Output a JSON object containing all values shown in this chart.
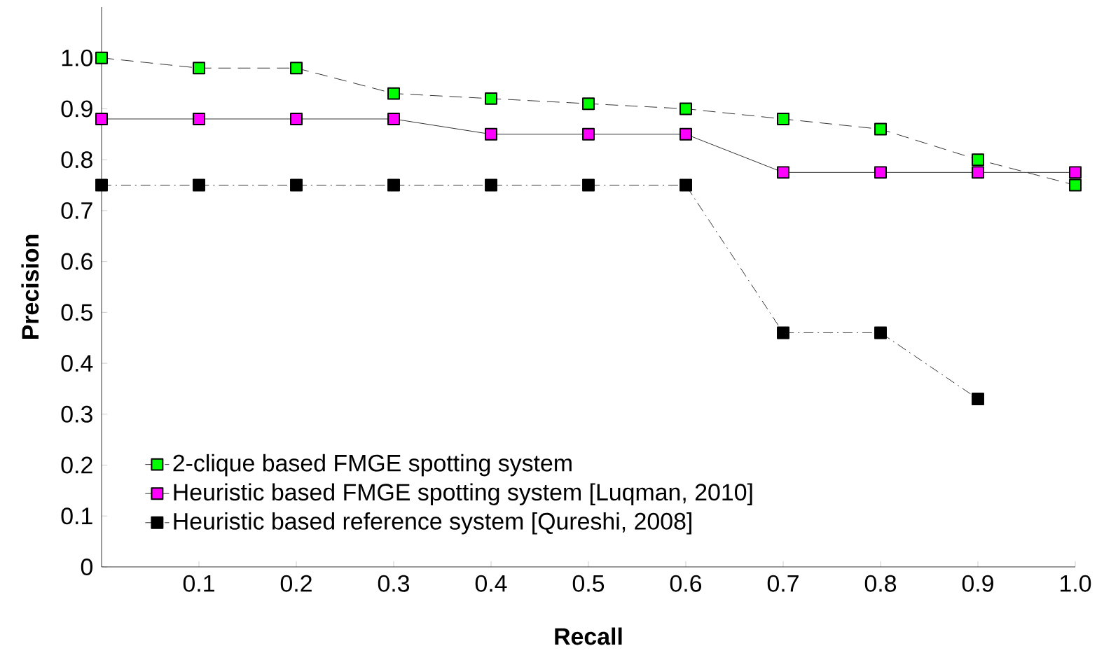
{
  "chart_data": {
    "type": "line",
    "xlabel": "Recall",
    "ylabel": "Precision",
    "x": [
      0,
      0.1,
      0.2,
      0.3,
      0.4,
      0.5,
      0.6,
      0.7,
      0.8,
      0.9,
      1
    ],
    "series": [
      {
        "name": "2-clique based FMGE spotting system",
        "color": "#00ff00",
        "line_style": "dashed",
        "values": [
          1.0,
          0.98,
          0.98,
          0.93,
          0.92,
          0.91,
          0.9,
          0.88,
          0.86,
          0.8,
          0.75
        ]
      },
      {
        "name": "Heuristic based FMGE spotting system [Luqman, 2010]",
        "color": "#ff00ff",
        "line_style": "solid",
        "values": [
          0.88,
          0.88,
          0.88,
          0.88,
          0.85,
          0.85,
          0.85,
          0.775,
          0.775,
          0.775,
          0.775
        ]
      },
      {
        "name": "Heuristic based reference system [Qureshi, 2008]",
        "color": "#000000",
        "line_style": "dashdot",
        "values": [
          0.75,
          0.75,
          0.75,
          0.75,
          0.75,
          0.75,
          0.75,
          0.46,
          0.46,
          0.33,
          null
        ]
      }
    ],
    "marker": "square",
    "xlim": [
      0,
      1
    ],
    "ylim": [
      0,
      1.1
    ],
    "xticks": [
      0.1,
      0.2,
      0.3,
      0.4,
      0.5,
      0.6,
      0.7,
      0.8,
      0.9,
      {
        "value": 1,
        "label": "1.0"
      }
    ],
    "yticks": [
      0,
      0.1,
      0.2,
      0.3,
      0.4,
      0.5,
      0.6,
      0.7,
      0.8,
      0.9,
      {
        "value": 1,
        "label": "1.0"
      }
    ],
    "legend": "bottom left",
    "grid": false
  }
}
